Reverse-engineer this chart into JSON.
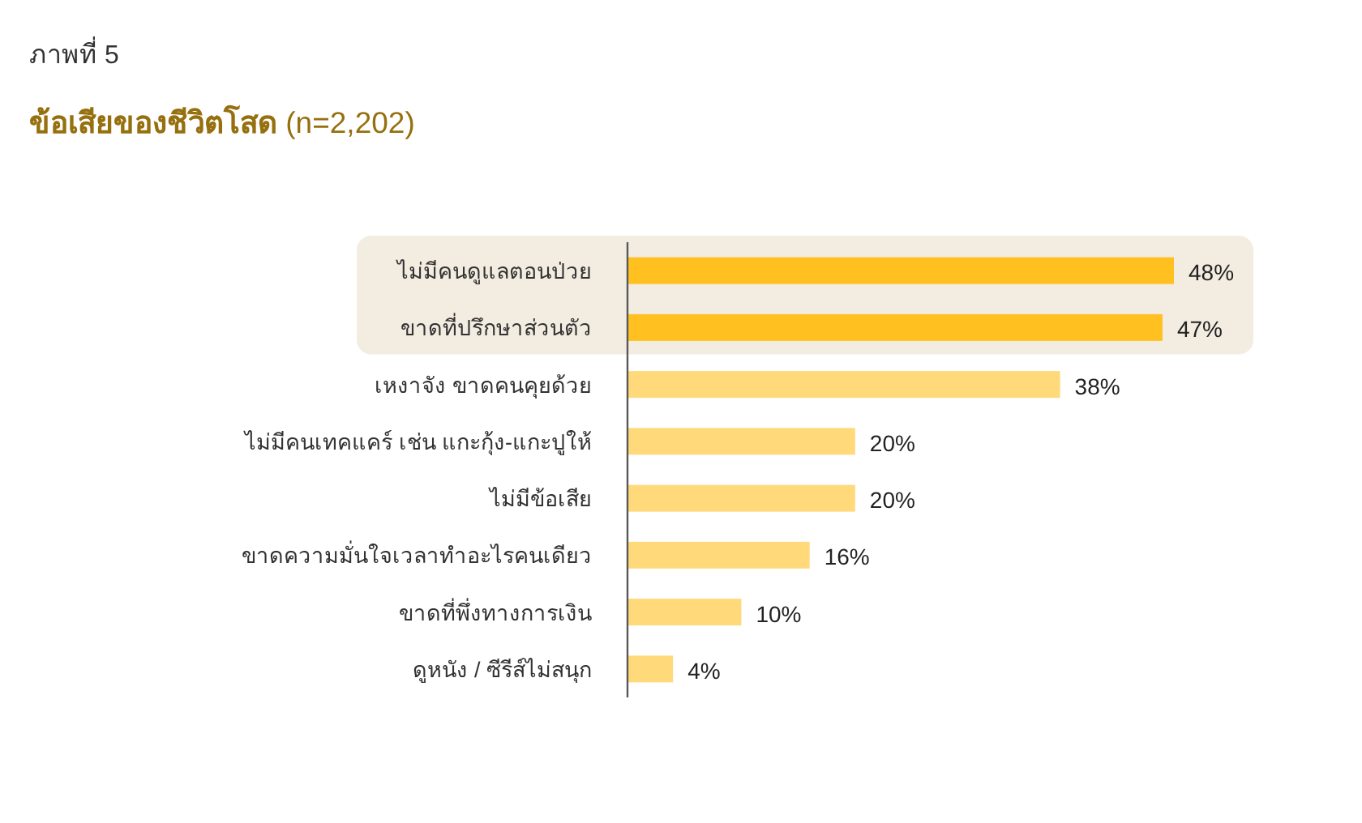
{
  "chart_data": {
    "type": "bar",
    "orientation": "horizontal",
    "title": "ภาพที่ 5",
    "subtitle": "**ข้อเสียของชีวิตโสด** (n=2,202)",
    "categories": [
      "ไม่มีคนดูแลตอนป่วย",
      "ขาดที่ปรึกษาส่วนตัว",
      "เหงาจัง ขาดคนคุยด้วย",
      "ไม่มีคนเทคแคร์ เช่น แกะกุ้ง-แกะปูให้",
      "ไม่มีข้อเสีย",
      "ขาดความมั่นใจเวลาทำอะไรคนเดียว",
      "ขาดที่พึ่งทางการเงิน",
      "ดูหนัง / ซีรีส์ไม่สนุก"
    ],
    "values": [
      48,
      47,
      38,
      20,
      20,
      16,
      10,
      4
    ],
    "colors": [
      "#ffc020",
      "#ffc020",
      "#ffd97a",
      "#ffd97a",
      "#ffd97a",
      "#ffd97a",
      "#ffd97a",
      "#ffd97a"
    ],
    "value_labels": [
      "48%",
      "47%",
      "38%",
      "20%",
      "20%",
      "16%",
      "10%",
      "4%"
    ],
    "bands": [
      {
        "axis": "y",
        "from": "ไม่มีคนดูแลตอนป่วย",
        "to": "ขาดที่ปรึกษาส่วนตัว",
        "color": "#f3ece1"
      }
    ]
  }
}
